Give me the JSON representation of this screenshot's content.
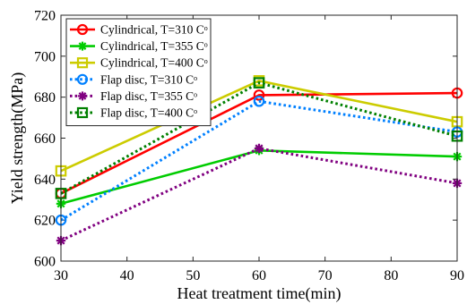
{
  "chart_data": {
    "type": "line",
    "title": "",
    "xlabel": "Heat treatment time(min)",
    "ylabel": "Yield strength(MPa)",
    "xlim": [
      30,
      90
    ],
    "ylim": [
      600,
      720
    ],
    "xticks": [
      30,
      40,
      50,
      60,
      70,
      80,
      90
    ],
    "yticks": [
      600,
      620,
      640,
      660,
      680,
      700,
      720
    ],
    "grid": false,
    "legend_position": "top-left",
    "x": [
      30,
      60,
      90
    ],
    "series": [
      {
        "name": "Cylindrical, T=310 Cᵒ",
        "values": [
          633,
          681,
          682
        ],
        "color": "#ff0000",
        "line_style": "solid",
        "marker": "circle"
      },
      {
        "name": "Cylindrical, T=355 Cᵒ",
        "values": [
          628,
          654,
          651
        ],
        "color": "#00cc00",
        "line_style": "solid",
        "marker": "asterisk"
      },
      {
        "name": "Cylindrical, T=400 Cᵒ",
        "values": [
          644,
          688,
          668
        ],
        "color": "#cccc00",
        "line_style": "solid",
        "marker": "square"
      },
      {
        "name": "Flap disc, T=310 Cᵒ",
        "values": [
          620,
          678,
          663
        ],
        "color": "#0080ff",
        "line_style": "dotted",
        "marker": "circle"
      },
      {
        "name": "Flap disc, T=355 Cᵒ",
        "values": [
          610,
          655,
          638
        ],
        "color": "#800080",
        "line_style": "dotted",
        "marker": "asterisk"
      },
      {
        "name": "Flap disc, T=400 Cᵒ",
        "values": [
          633,
          687,
          661
        ],
        "color": "#008000",
        "line_style": "dotted",
        "marker": "square"
      }
    ]
  }
}
